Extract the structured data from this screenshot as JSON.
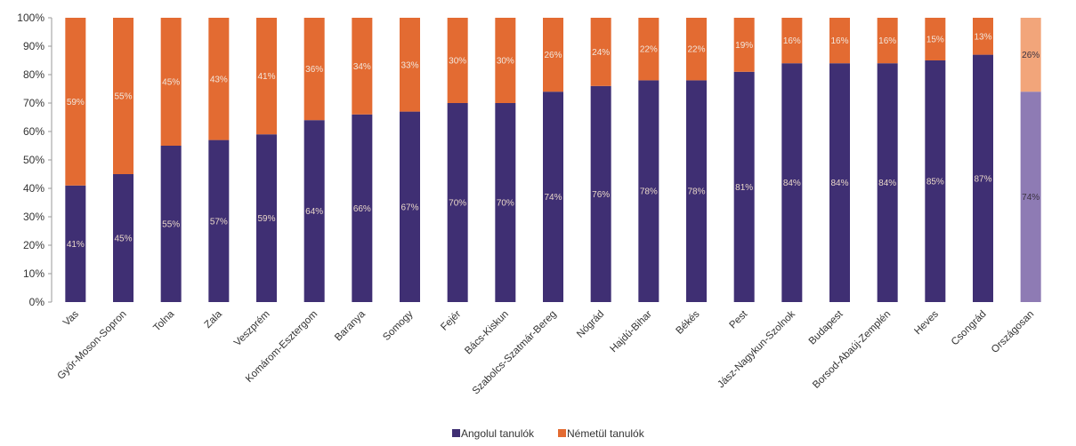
{
  "chart_data": {
    "type": "bar",
    "stacked": true,
    "categories": [
      "Vas",
      "Győr-Moson-Sopron",
      "Tolna",
      "Zala",
      "Veszprém",
      "Komárom-Esztergom",
      "Baranya",
      "Somogy",
      "Fejér",
      "Bács-Kiskun",
      "Szabolcs-Szatmár-Bereg",
      "Nógrád",
      "Hajdú-Bihar",
      "Békés",
      "Pest",
      "Jász-Nagykun-Szolnok",
      "Budapest",
      "Borsod-Abaúj-Zemplén",
      "Heves",
      "Csongrád",
      "Országosan"
    ],
    "series": [
      {
        "name": "Angolul tanulók",
        "color": "#3f2f73",
        "highlight_color": "#8e7bb4",
        "values": [
          41,
          45,
          55,
          57,
          59,
          64,
          66,
          67,
          70,
          70,
          74,
          76,
          78,
          78,
          81,
          84,
          84,
          84,
          85,
          87,
          74
        ],
        "labels": [
          "41%",
          "45%",
          "55%",
          "57%",
          "59%",
          "64%",
          "66%",
          "67%",
          "70%",
          "70%",
          "74%",
          "76%",
          "78%",
          "78%",
          "81%",
          "84%",
          "84%",
          "84%",
          "85%",
          "87%",
          "74%"
        ]
      },
      {
        "name": "Németül tanulók",
        "color": "#e36b32",
        "highlight_color": "#f2a57a",
        "values": [
          59,
          55,
          45,
          43,
          41,
          36,
          34,
          33,
          30,
          30,
          26,
          24,
          22,
          22,
          19,
          16,
          16,
          16,
          15,
          13,
          26
        ],
        "labels": [
          "59%",
          "55%",
          "45%",
          "43%",
          "41%",
          "36%",
          "34%",
          "33%",
          "30%",
          "30%",
          "26%",
          "24%",
          "22%",
          "22%",
          "19%",
          "16%",
          "16%",
          "16%",
          "15%",
          "13%",
          "26%"
        ]
      }
    ],
    "highlight_category": "Országosan",
    "y_ticks": [
      "0%",
      "10%",
      "20%",
      "30%",
      "40%",
      "50%",
      "60%",
      "70%",
      "80%",
      "90%",
      "100%"
    ],
    "ylim": [
      0,
      100
    ],
    "grid": false,
    "legend_position": "bottom",
    "title": "",
    "xlabel": "",
    "ylabel": ""
  }
}
